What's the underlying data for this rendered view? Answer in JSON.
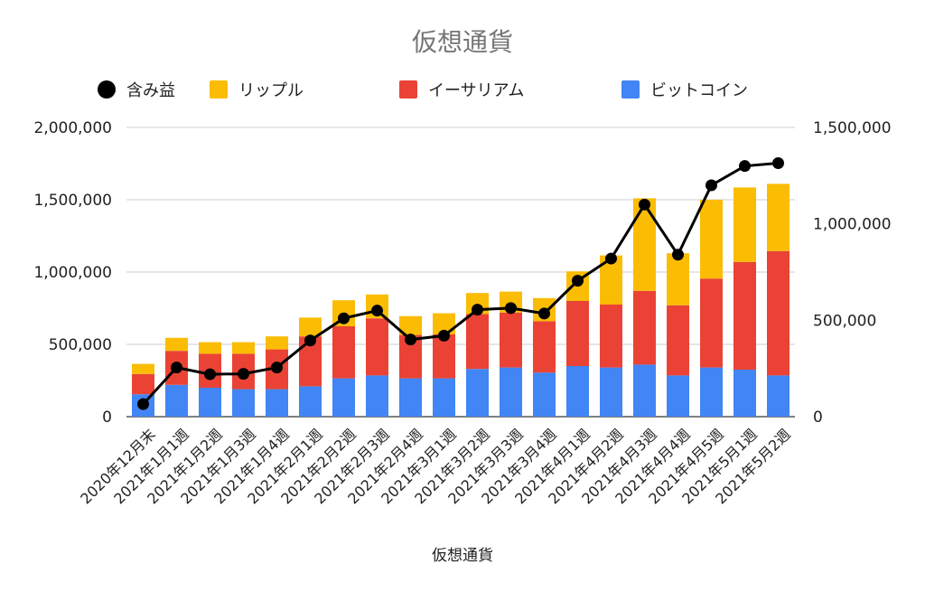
{
  "chart_data": {
    "type": "bar",
    "stacked": true,
    "title": "仮想通貨",
    "xlabel": "仮想通貨",
    "ylabel_left": "",
    "ylabel_right": "",
    "ylim_left": [
      0,
      2000000
    ],
    "ylim_right": [
      0,
      1500000
    ],
    "yticks_left": [
      "0",
      "500,000",
      "1,000,000",
      "1,500,000",
      "2,000,000"
    ],
    "yticks_right": [
      "0",
      "500,000",
      "1,000,000",
      "1,500,000"
    ],
    "grid": true,
    "legend_position": "top",
    "categories": [
      "2020年12月末",
      "2021年1月1週",
      "2021年1月2週",
      "2021年1月3週",
      "2021年1月4週",
      "2021年2月1週",
      "2021年2月2週",
      "2021年2月3週",
      "2021年2月4週",
      "2021年3月1週",
      "2021年3月2週",
      "2021年3月3週",
      "2021年3月4週",
      "2021年4月1週",
      "2021年4月2週",
      "2021年4月3週",
      "2021年4月4週",
      "2021年4月5週",
      "2021年5月1週",
      "2021年5月2週"
    ],
    "series": [
      {
        "name": "ビットコイン",
        "kind": "bar",
        "axis": "left",
        "color": "#4285f4",
        "values": [
          155000,
          220000,
          200000,
          190000,
          190000,
          210000,
          265000,
          285000,
          265000,
          265000,
          330000,
          340000,
          305000,
          350000,
          340000,
          360000,
          285000,
          340000,
          325000,
          285000
        ]
      },
      {
        "name": "イーサリアム",
        "kind": "bar",
        "axis": "left",
        "color": "#ea4335",
        "values": [
          140000,
          235000,
          235000,
          245000,
          275000,
          345000,
          360000,
          395000,
          300000,
          305000,
          380000,
          380000,
          355000,
          450000,
          435000,
          510000,
          485000,
          615000,
          745000,
          860000
        ]
      },
      {
        "name": "リップル",
        "kind": "bar",
        "axis": "left",
        "color": "#fbbc04",
        "values": [
          70000,
          90000,
          80000,
          80000,
          90000,
          130000,
          180000,
          165000,
          130000,
          145000,
          145000,
          145000,
          160000,
          205000,
          340000,
          640000,
          360000,
          545000,
          515000,
          465000
        ]
      },
      {
        "name": "含み益",
        "kind": "line",
        "axis": "right",
        "color": "#000000",
        "values": [
          65000,
          255000,
          220000,
          222000,
          255000,
          395000,
          510000,
          550000,
          400000,
          420000,
          555000,
          563000,
          535000,
          705000,
          820000,
          1100000,
          840000,
          1200000,
          1300000,
          1315000
        ]
      }
    ]
  }
}
